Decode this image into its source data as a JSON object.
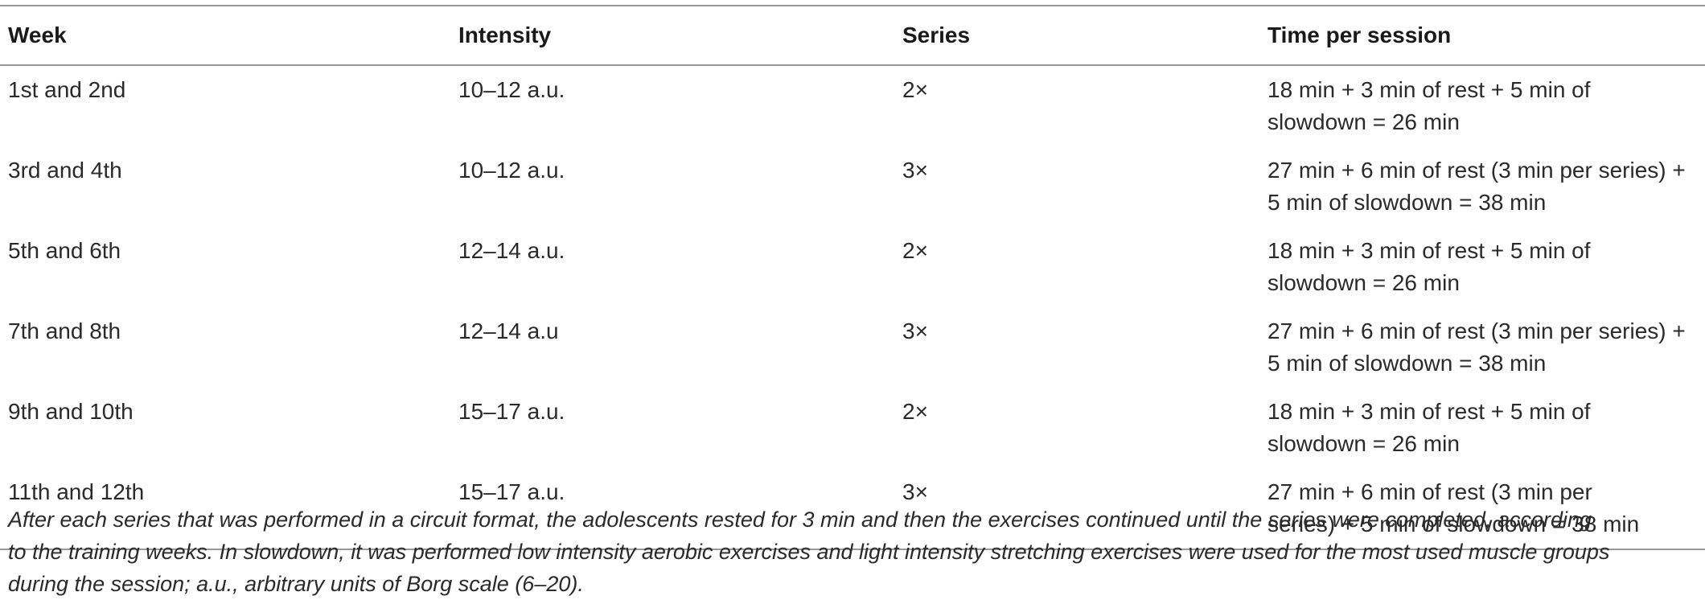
{
  "table": {
    "headers": {
      "week": "Week",
      "intensity": "Intensity",
      "series": "Series",
      "time": "Time per session"
    },
    "rows": [
      {
        "week": "1st and 2nd",
        "intensity": "10–12 a.u.",
        "series": "2×",
        "time_line1": "18 min + 3 min of rest + 5 min of",
        "time_line2": "slowdown = 26 min"
      },
      {
        "week": "3rd and 4th",
        "intensity": "10–12 a.u.",
        "series": "3×",
        "time_line1": "27 min + 6 min of rest (3 min per series) +",
        "time_line2": "5 min of slowdown = 38 min"
      },
      {
        "week": "5th and 6th",
        "intensity": "12–14 a.u.",
        "series": "2×",
        "time_line1": "18 min + 3 min of rest + 5 min of",
        "time_line2": "slowdown = 26 min"
      },
      {
        "week": "7th and 8th",
        "intensity": "12–14 a.u",
        "series": "3×",
        "time_line1": "27 min + 6 min of rest (3 min per series) +",
        "time_line2": "5 min of slowdown = 38 min"
      },
      {
        "week": "9th and 10th",
        "intensity": "15–17 a.u.",
        "series": "2×",
        "time_line1": "18 min + 3 min of rest + 5 min of",
        "time_line2": "slowdown = 26 min"
      },
      {
        "week": "11th and 12th",
        "intensity": "15–17 a.u.",
        "series": "3×",
        "time_line1": "27 min + 6 min of rest (3 min per",
        "time_line2": "series) + 5 min of slowdown = 38 min"
      }
    ]
  },
  "footnote": {
    "line1": "After each series that was performed in a circuit format, the adolescents rested for 3 min and then the exercises continued until the series were completed, according",
    "line2": "to the training weeks. In slowdown, it was performed low intensity aerobic exercises and light intensity stretching exercises were used for the most used muscle groups",
    "line3": "during the session; a.u., arbitrary units of Borg scale (6–20)."
  }
}
